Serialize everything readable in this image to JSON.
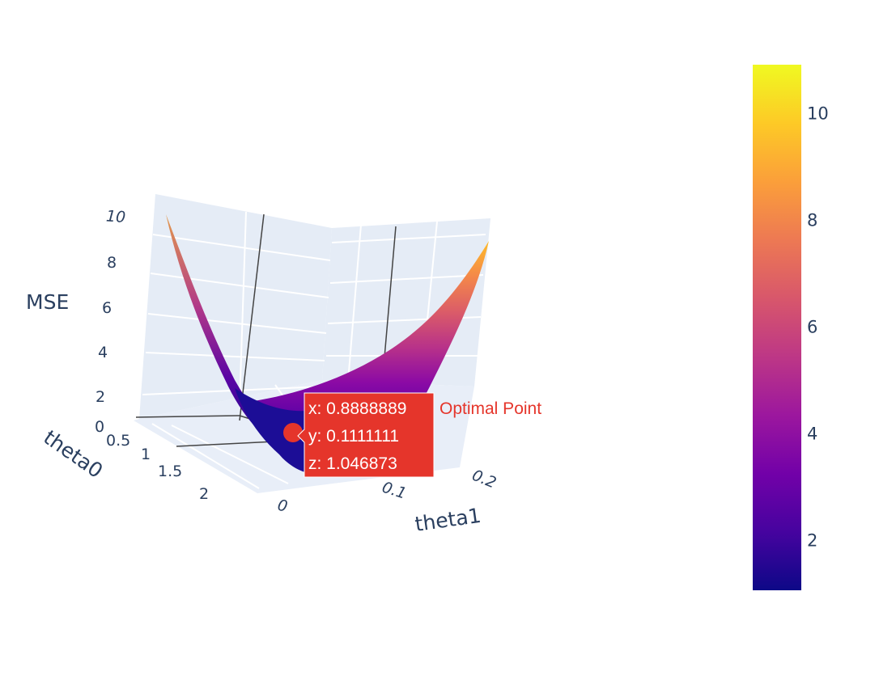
{
  "chart_data": {
    "type": "surface",
    "x_axis": {
      "title": "theta0",
      "ticks": [
        "0.5",
        "1",
        "1.5",
        "2"
      ]
    },
    "y_axis": {
      "title": "theta1",
      "ticks": [
        "0",
        "0.1",
        "0.2"
      ]
    },
    "z_axis": {
      "title": "MSE",
      "ticks": [
        "0",
        "2",
        "4",
        "6",
        "8",
        "10"
      ]
    },
    "surface": {
      "colorscale": "plasma",
      "z_range": [
        1.05,
        10.9
      ]
    },
    "colorbar": {
      "ticks": [
        "2",
        "4",
        "6",
        "8",
        "10"
      ],
      "tick_values": [
        2,
        4,
        6,
        8,
        10
      ],
      "range": [
        1.05,
        10.9
      ],
      "colors": [
        "#0d0887",
        "#46039f",
        "#7201a8",
        "#9c179e",
        "#bd3786",
        "#d8576b",
        "#ed7953",
        "#fb9f3a",
        "#fdca26",
        "#f0f921"
      ]
    },
    "marker": {
      "name": "Optimal Point",
      "color": "#e5352b",
      "x": 0.8888889,
      "y": 0.1111111,
      "z": 1.046873
    }
  },
  "hover": {
    "line_x": "x: 0.8888889",
    "line_y": "y: 0.1111111",
    "line_z": "z: 1.046873",
    "trace_name": "Optimal Point"
  }
}
